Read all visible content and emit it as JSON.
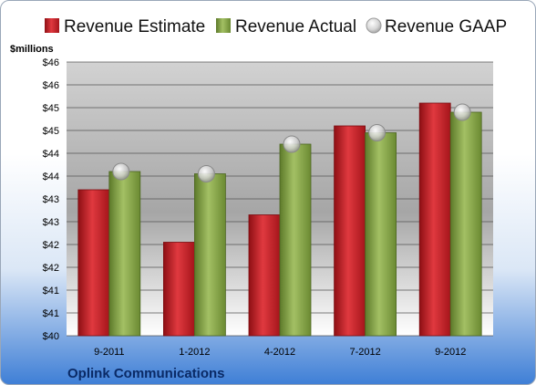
{
  "colors": {
    "estimate": "#d3242c",
    "actual": "#8aa94a",
    "gaap": "#c8c8c8",
    "company_text": "#0a2a66"
  },
  "chart_data": {
    "type": "bar",
    "title": "",
    "subtitle": "Oplink Communications",
    "ylabel": "$millions",
    "ylim": [
      40,
      46
    ],
    "ytick_values": [
      40,
      40.5,
      41,
      41.5,
      42,
      42.5,
      43,
      43.5,
      44,
      44.5,
      45,
      45.5,
      46
    ],
    "ytick_labels": [
      "$40",
      "$41",
      "$41",
      "$42",
      "$42",
      "$43",
      "$43",
      "$44",
      "$44",
      "$45",
      "$45",
      "$46",
      "$46"
    ],
    "categories": [
      "9-2011",
      "1-2012",
      "4-2012",
      "7-2012",
      "9-2012"
    ],
    "series": [
      {
        "name": "Revenue Estimate",
        "kind": "bar",
        "values": [
          43.2,
          42.05,
          42.65,
          44.6,
          45.1
        ]
      },
      {
        "name": "Revenue Actual",
        "kind": "bar",
        "values": [
          43.6,
          43.55,
          44.2,
          44.45,
          44.9
        ]
      },
      {
        "name": "Revenue GAAP",
        "kind": "marker",
        "values": [
          43.6,
          43.55,
          44.2,
          44.45,
          44.9
        ]
      }
    ],
    "grid": true,
    "legend": "top"
  }
}
